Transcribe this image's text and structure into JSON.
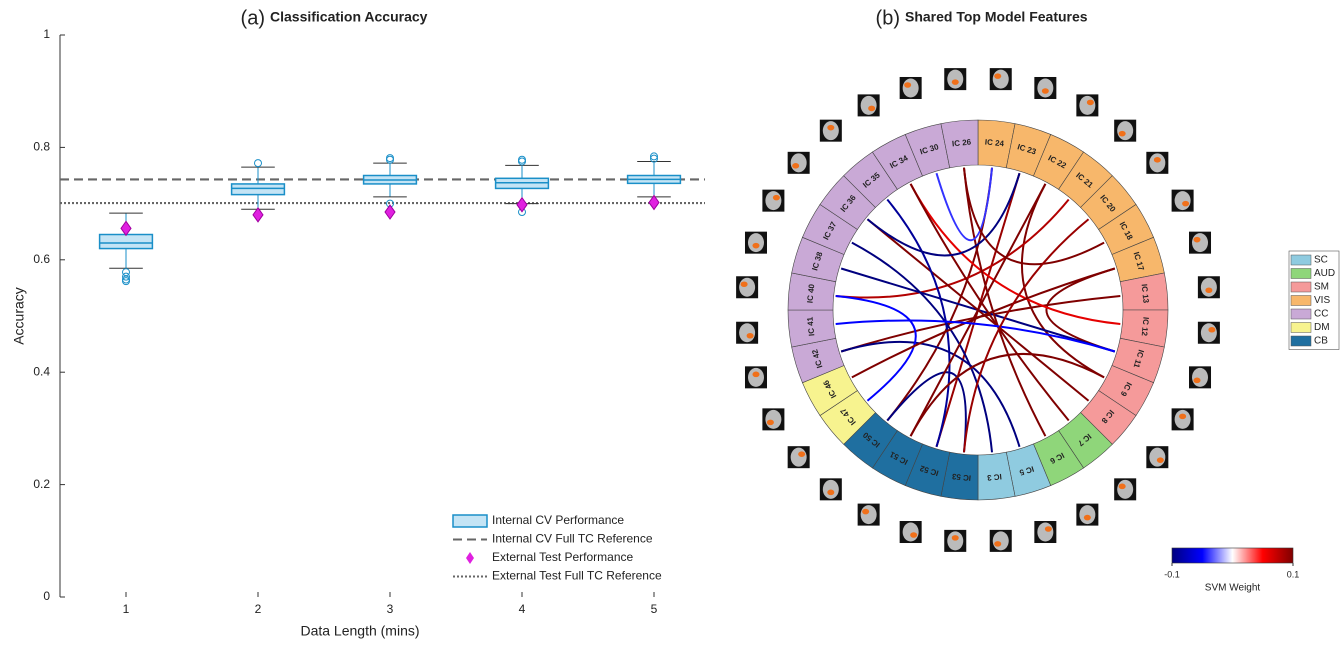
{
  "chart_data": [
    {
      "type": "box",
      "panel_label": "(a)",
      "title": "Classification Accuracy",
      "xlabel": "Data Length (mins)",
      "ylabel": "Accuracy",
      "x": [
        1,
        2,
        3,
        4,
        5
      ],
      "xlim": [
        0.5,
        5.5
      ],
      "xticks": [
        1,
        2,
        3,
        4,
        5
      ],
      "ylim": [
        0,
        1
      ],
      "yticks": [
        0,
        0.2,
        0.4,
        0.6,
        0.8,
        1
      ],
      "boxes": {
        "name": "Internal CV Performance",
        "color": "#c4e4f5",
        "edge_color": "#1a8fc8",
        "whisker_low": [
          0.585,
          0.69,
          0.712,
          0.7,
          0.712
        ],
        "q1": [
          0.62,
          0.716,
          0.735,
          0.727,
          0.736
        ],
        "median": [
          0.63,
          0.727,
          0.742,
          0.737,
          0.743
        ],
        "q3": [
          0.645,
          0.735,
          0.75,
          0.745,
          0.75
        ],
        "whisker_high": [
          0.683,
          0.765,
          0.772,
          0.768,
          0.775
        ],
        "outliers": [
          [
            0.578,
            0.57,
            0.565,
            0.562
          ],
          [
            0.772,
            0.68
          ],
          [
            0.778,
            0.781,
            0.7
          ],
          [
            0.775,
            0.778,
            0.685
          ],
          [
            0.78,
            0.784,
            0.7
          ]
        ]
      },
      "points": {
        "name": "External Test Performance",
        "color": "#e020e0",
        "values": [
          0.656,
          0.68,
          0.685,
          0.698,
          0.702
        ]
      },
      "reference_lines": [
        {
          "name": "Internal CV Full TC Reference",
          "value": 0.743,
          "style": "dashed",
          "color": "#666666"
        },
        {
          "name": "External Test Full TC Reference",
          "value": 0.701,
          "style": "dotted",
          "color": "#666666"
        }
      ],
      "legend": "lower right"
    },
    {
      "type": "chord",
      "panel_label": "(b)",
      "title": "Shared Top Model Features",
      "networks": [
        {
          "name": "SC",
          "color": "#8fcbe0"
        },
        {
          "name": "AUD",
          "color": "#8fd67a"
        },
        {
          "name": "SM",
          "color": "#f59a9a"
        },
        {
          "name": "VIS",
          "color": "#f7b76b"
        },
        {
          "name": "CC",
          "color": "#c9a9d6"
        },
        {
          "name": "DM",
          "color": "#f7f38f"
        },
        {
          "name": "CB",
          "color": "#1f6fa0"
        }
      ],
      "segments": [
        {
          "label": "IC 24",
          "network": 3
        },
        {
          "label": "IC 23",
          "network": 3
        },
        {
          "label": "IC 22",
          "network": 3
        },
        {
          "label": "IC 21",
          "network": 3
        },
        {
          "label": "IC 20",
          "network": 3
        },
        {
          "label": "IC 18",
          "network": 3
        },
        {
          "label": "IC 17",
          "network": 3
        },
        {
          "label": "IC 13",
          "network": 2
        },
        {
          "label": "IC 12",
          "network": 2
        },
        {
          "label": "IC 11",
          "network": 2
        },
        {
          "label": "IC 9",
          "network": 2
        },
        {
          "label": "IC 8",
          "network": 2
        },
        {
          "label": "IC 7",
          "network": 1
        },
        {
          "label": "IC 6",
          "network": 1
        },
        {
          "label": "IC 5",
          "network": 0
        },
        {
          "label": "IC 3",
          "network": 0
        },
        {
          "label": "IC 53",
          "network": 6
        },
        {
          "label": "IC 52",
          "network": 6
        },
        {
          "label": "IC 51",
          "network": 6
        },
        {
          "label": "IC 50",
          "network": 6
        },
        {
          "label": "IC 47",
          "network": 5
        },
        {
          "label": "IC 46",
          "network": 5
        },
        {
          "label": "IC 42",
          "network": 4
        },
        {
          "label": "IC 41",
          "network": 4
        },
        {
          "label": "IC 40",
          "network": 4
        },
        {
          "label": "IC 38",
          "network": 4
        },
        {
          "label": "IC 37",
          "network": 4
        },
        {
          "label": "IC 36",
          "network": 4
        },
        {
          "label": "IC 35",
          "network": 4
        },
        {
          "label": "IC 34",
          "network": 4
        },
        {
          "label": "IC 30",
          "network": 4
        },
        {
          "label": "IC 26",
          "network": 4
        }
      ],
      "chords": [
        {
          "from": 0,
          "to": 19,
          "weight": 0.1
        },
        {
          "from": 1,
          "to": 17,
          "weight": 0.09
        },
        {
          "from": 2,
          "to": 10,
          "weight": 0.1
        },
        {
          "from": 3,
          "to": 24,
          "weight": 0.08
        },
        {
          "from": 6,
          "to": 9,
          "weight": 0.1
        },
        {
          "from": 7,
          "to": 22,
          "weight": 0.1
        },
        {
          "from": 8,
          "to": 29,
          "weight": 0.06
        },
        {
          "from": 9,
          "to": 25,
          "weight": -0.1
        },
        {
          "from": 11,
          "to": 27,
          "weight": 0.1
        },
        {
          "from": 12,
          "to": 29,
          "weight": 0.1
        },
        {
          "from": 13,
          "to": 31,
          "weight": 0.1
        },
        {
          "from": 14,
          "to": 22,
          "weight": -0.1
        },
        {
          "from": 15,
          "to": 26,
          "weight": -0.1
        },
        {
          "from": 16,
          "to": 19,
          "weight": -0.1
        },
        {
          "from": 17,
          "to": 28,
          "weight": -0.09
        },
        {
          "from": 18,
          "to": 2,
          "weight": 0.1
        },
        {
          "from": 20,
          "to": 24,
          "weight": -0.05
        },
        {
          "from": 21,
          "to": 6,
          "weight": 0.1
        },
        {
          "from": 27,
          "to": 1,
          "weight": -0.1
        },
        {
          "from": 30,
          "to": 0,
          "weight": -0.04
        },
        {
          "from": 31,
          "to": 5,
          "weight": 0.1
        },
        {
          "from": 23,
          "to": 9,
          "weight": -0.05
        },
        {
          "from": 10,
          "to": 18,
          "weight": 0.1
        },
        {
          "from": 4,
          "to": 16,
          "weight": 0.09
        }
      ],
      "colorbar_label": "SVM Weight",
      "clim": [
        -0.1,
        0.1
      ],
      "cticks": [
        -0.1,
        0.1
      ],
      "colormap": [
        "#00007f",
        "#0000ff",
        "#ffffff",
        "#ff0000",
        "#7f0000"
      ],
      "legend": "right"
    }
  ]
}
